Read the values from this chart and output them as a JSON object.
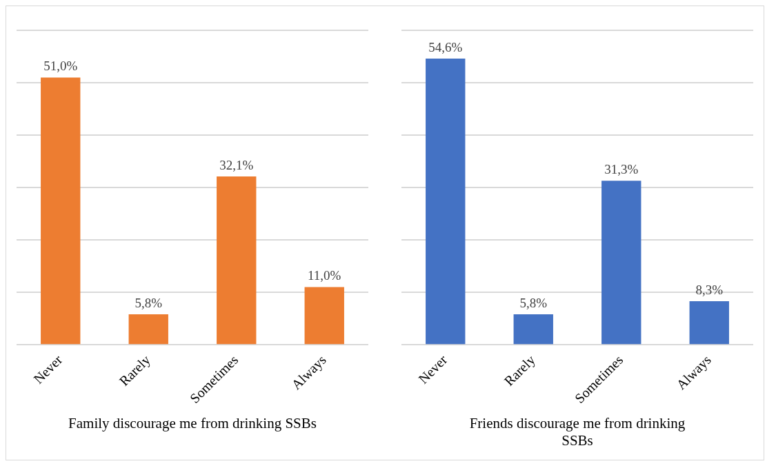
{
  "chart_data": [
    {
      "type": "bar",
      "xlabel": "Family discourage me from drinking SSBs",
      "categories": [
        "Never",
        "Rarely",
        "Sometimes",
        "Always"
      ],
      "values": [
        51.0,
        5.8,
        32.1,
        11.0
      ],
      "value_labels": [
        "51,0%",
        "5,8%",
        "32,1%",
        "11,0%"
      ],
      "color": "#ed7d31",
      "ylim": [
        0,
        60
      ],
      "yticks": [
        0,
        10,
        20,
        30,
        40,
        50,
        60
      ],
      "grid": "y",
      "tick_labels": "x",
      "legend": false
    },
    {
      "type": "bar",
      "xlabel": "Friends discourage me from drinking SSBs",
      "categories": [
        "Never",
        "Rarely",
        "Sometimes",
        "Always"
      ],
      "values": [
        54.6,
        5.8,
        31.3,
        8.3
      ],
      "value_labels": [
        "54,6%",
        "5,8%",
        "31,3%",
        "8,3%"
      ],
      "color": "#4472c4",
      "ylim": [
        0,
        60
      ],
      "yticks": [
        0,
        10,
        20,
        30,
        40,
        50,
        60
      ],
      "grid": "y",
      "tick_labels": "x",
      "legend": false
    }
  ]
}
